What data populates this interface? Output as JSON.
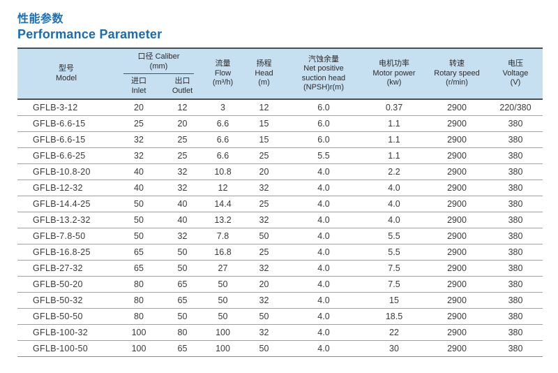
{
  "page": {
    "title_zh": "性能参数",
    "title_en": "Performance Parameter"
  },
  "colors": {
    "title_blue": "#1a6cae",
    "header_bg": "#c6dff1",
    "dark_border": "#4d4d4d",
    "row_line": "#a0a0a0",
    "body_text": "#3a3a3a"
  },
  "table": {
    "headers": {
      "model_zh": "型号",
      "model_en": "Model",
      "caliber_zh_en": "口径 Caliber",
      "caliber_unit": "(mm)",
      "inlet_zh": "进口",
      "inlet_en": "Inlet",
      "outlet_zh": "出口",
      "outlet_en": "Outlet",
      "flow_zh": "流量",
      "flow_en": "Flow",
      "flow_unit": "(m³/h)",
      "head_zh": "扬程",
      "head_en": "Head",
      "head_unit": "(m)",
      "npsh_zh": "汽蚀余量",
      "npsh_en1": "Net positive",
      "npsh_en2": "suction head",
      "npsh_unit": "(NPSH)r(m)",
      "motor_zh": "电机功率",
      "motor_en": "Motor power",
      "motor_unit": "(kw)",
      "speed_zh": "转速",
      "speed_en": "Rotary speed",
      "speed_unit": "(r/min)",
      "voltage_zh": "电压",
      "voltage_en": "Voltage",
      "voltage_unit": "(V)"
    },
    "column_keys": [
      "model",
      "inlet",
      "outlet",
      "flow",
      "head",
      "npsh",
      "motor-power",
      "rotary-speed",
      "voltage"
    ],
    "rows": [
      [
        "GFLB-3-12",
        "20",
        "12",
        "3",
        "12",
        "6.0",
        "0.37",
        "2900",
        "220/380"
      ],
      [
        "GFLB-6.6-15",
        "25",
        "20",
        "6.6",
        "15",
        "6.0",
        "1.1",
        "2900",
        "380"
      ],
      [
        "GFLB-6.6-15",
        "32",
        "25",
        "6.6",
        "15",
        "6.0",
        "1.1",
        "2900",
        "380"
      ],
      [
        "GFLB-6.6-25",
        "32",
        "25",
        "6.6",
        "25",
        "5.5",
        "1.1",
        "2900",
        "380"
      ],
      [
        "GFLB-10.8-20",
        "40",
        "32",
        "10.8",
        "20",
        "4.0",
        "2.2",
        "2900",
        "380"
      ],
      [
        "GFLB-12-32",
        "40",
        "32",
        "12",
        "32",
        "4.0",
        "4.0",
        "2900",
        "380"
      ],
      [
        "GFLB-14.4-25",
        "50",
        "40",
        "14.4",
        "25",
        "4.0",
        "4.0",
        "2900",
        "380"
      ],
      [
        "GFLB-13.2-32",
        "50",
        "40",
        "13.2",
        "32",
        "4.0",
        "4.0",
        "2900",
        "380"
      ],
      [
        "GFLB-7.8-50",
        "50",
        "32",
        "7.8",
        "50",
        "4.0",
        "5.5",
        "2900",
        "380"
      ],
      [
        "GFLB-16.8-25",
        "65",
        "50",
        "16.8",
        "25",
        "4.0",
        "5.5",
        "2900",
        "380"
      ],
      [
        "GFLB-27-32",
        "65",
        "50",
        "27",
        "32",
        "4.0",
        "7.5",
        "2900",
        "380"
      ],
      [
        "GFLB-50-20",
        "80",
        "65",
        "50",
        "20",
        "4.0",
        "7.5",
        "2900",
        "380"
      ],
      [
        "GFLB-50-32",
        "80",
        "65",
        "50",
        "32",
        "4.0",
        "15",
        "2900",
        "380"
      ],
      [
        "GFLB-50-50",
        "80",
        "50",
        "50",
        "50",
        "4.0",
        "18.5",
        "2900",
        "380"
      ],
      [
        "GFLB-100-32",
        "100",
        "80",
        "100",
        "32",
        "4.0",
        "22",
        "2900",
        "380"
      ],
      [
        "GFLB-100-50",
        "100",
        "65",
        "100",
        "50",
        "4.0",
        "30",
        "2900",
        "380"
      ]
    ]
  }
}
